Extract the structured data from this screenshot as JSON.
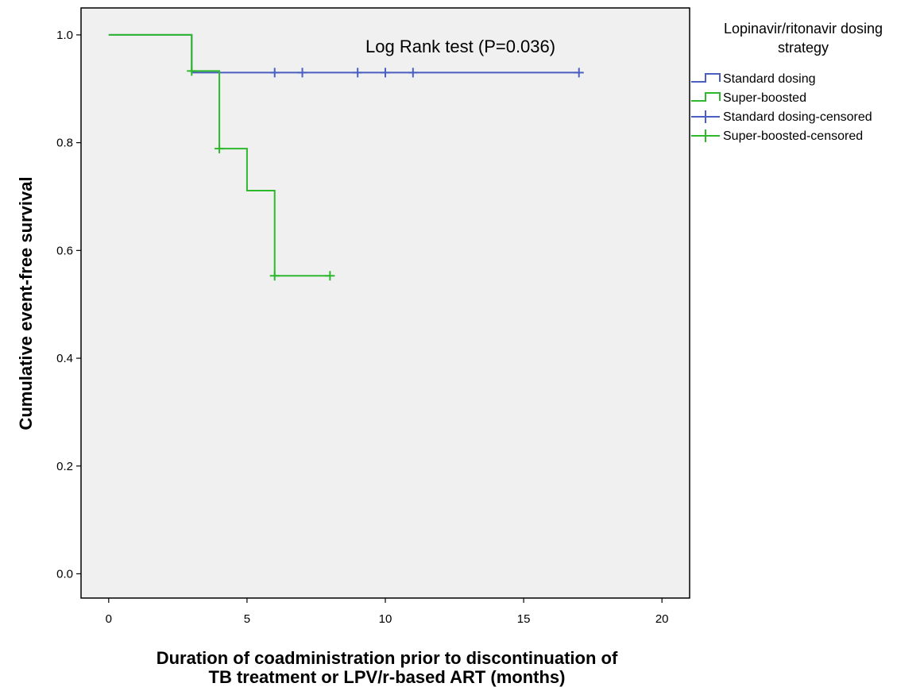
{
  "chart_data": {
    "type": "line",
    "subtype": "kaplan-meier-step",
    "xlabel_line1": "Duration of coadministration prior to discontinuation of",
    "xlabel_line2": "TB treatment or LPV/r-based ART (months)",
    "ylabel": "Cumulative event-free survival",
    "annotation": "Log Rank test (P=0.036)",
    "xlim": [
      -1,
      21
    ],
    "ylim": [
      -0.045,
      1.05
    ],
    "xticks": [
      0,
      5,
      10,
      15,
      20
    ],
    "xtick_labels": [
      "0",
      "5",
      "10",
      "15",
      "20"
    ],
    "yticks": [
      0.0,
      0.2,
      0.4,
      0.6,
      0.8,
      1.0
    ],
    "ytick_labels": [
      "0.0",
      "0.2",
      "0.4",
      "0.6",
      "0.8",
      "1.0"
    ],
    "grid": false,
    "plot_background": "#f0f0f0",
    "legend": {
      "title_line1": "Lopinavir/ritonavir dosing",
      "title_line2": "strategy",
      "placement": "right",
      "entries": [
        {
          "label": "Standard dosing",
          "kind": "step",
          "color": "#4a5fc1"
        },
        {
          "label": "Super-boosted",
          "kind": "step",
          "color": "#2eb82e"
        },
        {
          "label": "Standard dosing-censored",
          "kind": "censor",
          "color": "#4a5fc1"
        },
        {
          "label": "Super-boosted-censored",
          "kind": "censor",
          "color": "#2eb82e"
        }
      ]
    },
    "series": [
      {
        "name": "Standard dosing",
        "color": "#4a5fc1",
        "steps": [
          [
            0,
            1.0
          ],
          [
            3,
            0.93
          ],
          [
            17,
            0.93
          ]
        ],
        "censored": [
          [
            6,
            0.93
          ],
          [
            7,
            0.93
          ],
          [
            9,
            0.93
          ],
          [
            10,
            0.93
          ],
          [
            11,
            0.93
          ],
          [
            17,
            0.93
          ]
        ]
      },
      {
        "name": "Super-boosted",
        "color": "#2eb82e",
        "steps": [
          [
            0,
            1.0
          ],
          [
            3,
            0.933
          ],
          [
            4,
            0.789
          ],
          [
            5,
            0.711
          ],
          [
            6,
            0.553
          ],
          [
            8,
            0.553
          ]
        ],
        "censored": [
          [
            3,
            0.933
          ],
          [
            4,
            0.789
          ],
          [
            6,
            0.553
          ],
          [
            8,
            0.553
          ]
        ]
      }
    ]
  }
}
